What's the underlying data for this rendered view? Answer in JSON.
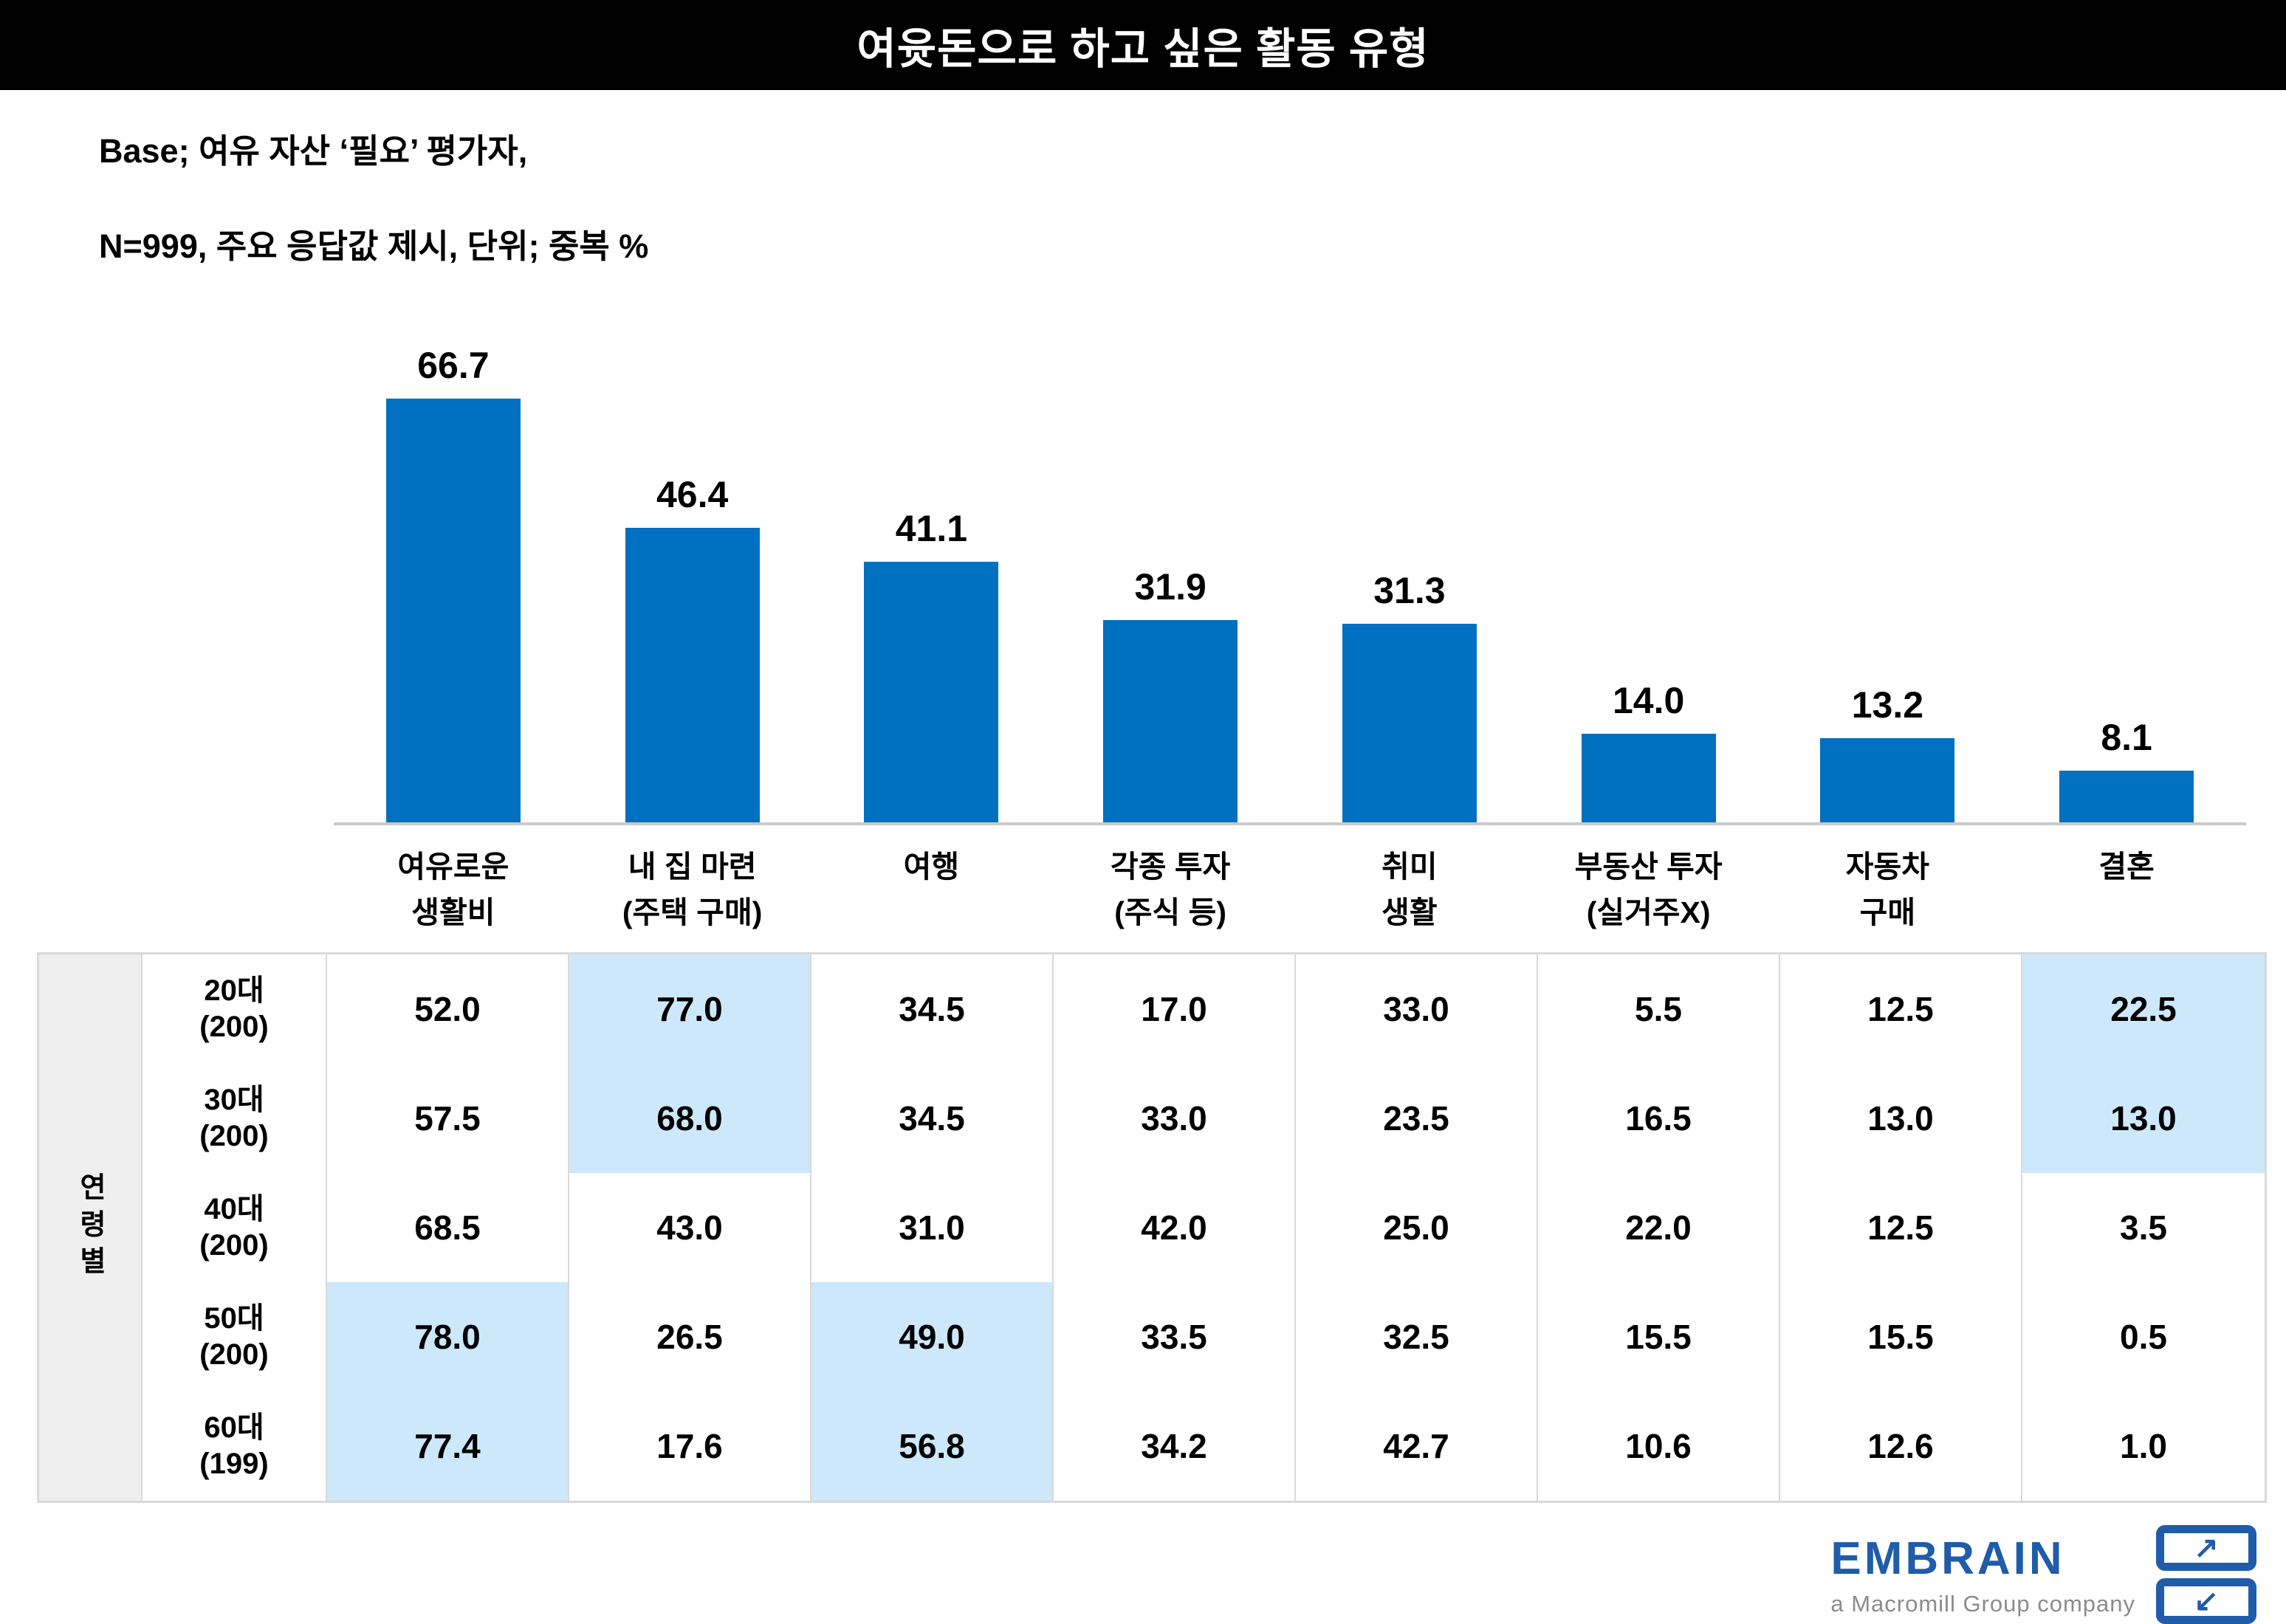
{
  "title": "여윳돈으로 하고 싶은 활동 유형",
  "base_note": {
    "line1": "Base; 여유 자산 ‘필요’ 평가자,",
    "line2": "N=999, 주요 응답값 제시, 단위; 중복 %"
  },
  "colors": {
    "bar": "#0070C0",
    "cell_highlight": "#CDE8FA",
    "brand_blue": "#1F5CA9",
    "title_bar_bg": "#000000",
    "axis_line": "#C9C9C9",
    "table_border": "#D9D9D9",
    "group_cell_bg": "#EFEFEF"
  },
  "chart_data": {
    "type": "bar",
    "title": "여윳돈으로 하고 싶은 활동 유형",
    "categories": [
      "여유로운 생활비",
      "내 집 마련 (주택 구매)",
      "여행",
      "각종 투자 (주식 등)",
      "취미 생활",
      "부동산 투자 (실거주X)",
      "자동차 구매",
      "결혼"
    ],
    "values": [
      66.7,
      46.4,
      41.1,
      31.9,
      31.3,
      14.0,
      13.2,
      8.1
    ],
    "value_labels": [
      "66.7",
      "46.4",
      "41.1",
      "31.9",
      "31.3",
      "14.0",
      "13.2",
      "8.1"
    ],
    "xlabel": "",
    "ylabel": "중복 %",
    "ylim": [
      0,
      80
    ],
    "grid": false,
    "legend": "none",
    "bar_color": "#0070C0"
  },
  "cat_lines": [
    {
      "line1": "여유로운",
      "line2": "생활비"
    },
    {
      "line1": "내 집 마련",
      "line2": "(주택 구매)"
    },
    {
      "line1": "여행",
      "line2": ""
    },
    {
      "line1": "각종 투자",
      "line2": "(주식 등)"
    },
    {
      "line1": "취미",
      "line2": "생활"
    },
    {
      "line1": "부동산 투자",
      "line2": "(실거주X)"
    },
    {
      "line1": "자동차",
      "line2": "구매"
    },
    {
      "line1": "결혼",
      "line2": ""
    }
  ],
  "table": {
    "row_group_label": "연령별",
    "rows": [
      {
        "label_line1": "20대",
        "label_line2": "(200)",
        "values": [
          "52.0",
          "77.0",
          "34.5",
          "17.0",
          "33.0",
          "5.5",
          "12.5",
          "22.5"
        ],
        "highlights": [
          false,
          true,
          false,
          false,
          false,
          false,
          false,
          true
        ]
      },
      {
        "label_line1": "30대",
        "label_line2": "(200)",
        "values": [
          "57.5",
          "68.0",
          "34.5",
          "33.0",
          "23.5",
          "16.5",
          "13.0",
          "13.0"
        ],
        "highlights": [
          false,
          true,
          false,
          false,
          false,
          false,
          false,
          true
        ]
      },
      {
        "label_line1": "40대",
        "label_line2": "(200)",
        "values": [
          "68.5",
          "43.0",
          "31.0",
          "42.0",
          "25.0",
          "22.0",
          "12.5",
          "3.5"
        ],
        "highlights": [
          false,
          false,
          false,
          false,
          false,
          false,
          false,
          false
        ]
      },
      {
        "label_line1": "50대",
        "label_line2": "(200)",
        "values": [
          "78.0",
          "26.5",
          "49.0",
          "33.5",
          "32.5",
          "15.5",
          "15.5",
          "0.5"
        ],
        "highlights": [
          true,
          false,
          true,
          false,
          false,
          false,
          false,
          false
        ]
      },
      {
        "label_line1": "60대",
        "label_line2": "(199)",
        "values": [
          "77.4",
          "17.6",
          "56.8",
          "34.2",
          "42.7",
          "10.6",
          "12.6",
          "1.0"
        ],
        "highlights": [
          true,
          false,
          true,
          false,
          false,
          false,
          false,
          false
        ]
      }
    ]
  },
  "logo": {
    "brand": "EMBRAIN",
    "tagline": "a Macromill Group company",
    "mark_arrows": [
      "↗",
      "↙"
    ]
  }
}
